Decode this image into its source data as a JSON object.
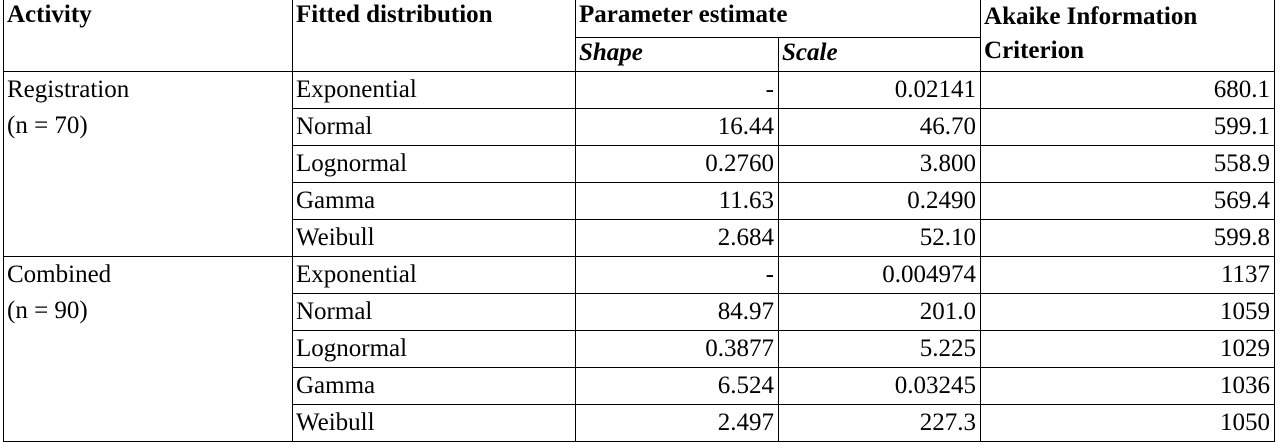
{
  "table": {
    "header": {
      "activity": "Activity",
      "distribution": "Fitted distribution",
      "parameter": "Parameter estimate",
      "shape": "Shape",
      "scale": "Scale",
      "aic": "Akaike Information Criterion"
    },
    "groups": [
      {
        "activity": "Registration",
        "n": "(n = 70)",
        "rows": [
          [
            "Exponential",
            "-",
            "0.02141",
            "680.1"
          ],
          [
            "Normal",
            "16.44",
            "46.70",
            "599.1"
          ],
          [
            "Lognormal",
            "0.2760",
            "3.800",
            "558.9"
          ],
          [
            "Gamma",
            "11.63",
            "0.2490",
            "569.4"
          ],
          [
            "Weibull",
            "2.684",
            "52.10",
            "599.8"
          ]
        ]
      },
      {
        "activity": "Combined",
        "n": "(n = 90)",
        "rows": [
          [
            "Exponential",
            "-",
            "0.004974",
            "1137"
          ],
          [
            "Normal",
            "84.97",
            "201.0",
            "1059"
          ],
          [
            "Lognormal",
            "0.3877",
            "5.225",
            "1029"
          ],
          [
            "Gamma",
            "6.524",
            "0.03245",
            "1036"
          ],
          [
            "Weibull",
            "2.497",
            "227.3",
            "1050"
          ]
        ]
      }
    ]
  }
}
